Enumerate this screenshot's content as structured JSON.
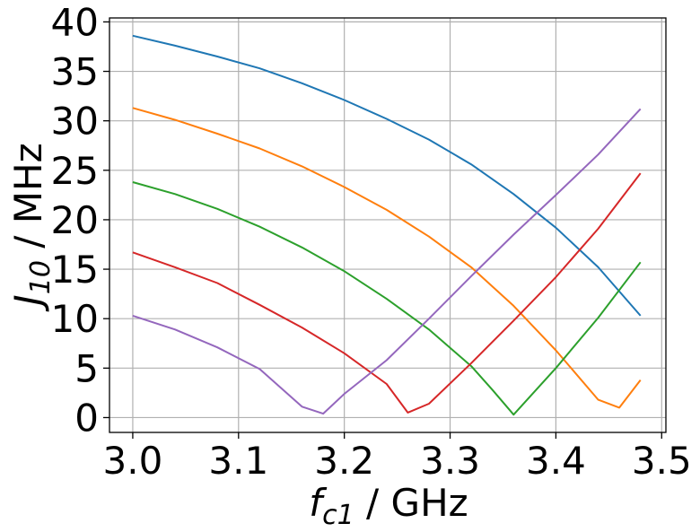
{
  "chart_data": {
    "type": "line",
    "xlabel": {
      "base": "f",
      "sub": "c1",
      "unit": " / GHz"
    },
    "ylabel": {
      "base": "J",
      "sub": "10",
      "unit": " / MHz"
    },
    "xlim": [
      2.978,
      3.504
    ],
    "ylim": [
      -1.5,
      40.4
    ],
    "grid": true,
    "xticks": [
      3.0,
      3.1,
      3.2,
      3.3,
      3.4,
      3.5
    ],
    "xtick_labels": [
      "3.0",
      "3.1",
      "3.2",
      "3.3",
      "3.4",
      "3.5"
    ],
    "yticks": [
      0,
      5,
      10,
      15,
      20,
      25,
      30,
      35,
      40
    ],
    "ytick_labels": [
      "0",
      "5",
      "10",
      "15",
      "20",
      "25",
      "30",
      "35",
      "40"
    ],
    "series": [
      {
        "color": "#1f77b4",
        "points": [
          [
            3.0,
            38.6
          ],
          [
            3.04,
            37.6
          ],
          [
            3.08,
            36.5
          ],
          [
            3.12,
            35.3
          ],
          [
            3.16,
            33.8
          ],
          [
            3.2,
            32.1
          ],
          [
            3.24,
            30.2
          ],
          [
            3.28,
            28.1
          ],
          [
            3.32,
            25.6
          ],
          [
            3.36,
            22.6
          ],
          [
            3.4,
            19.2
          ],
          [
            3.44,
            15.2
          ],
          [
            3.48,
            10.3
          ]
        ]
      },
      {
        "color": "#ff7f0e",
        "points": [
          [
            3.0,
            31.3
          ],
          [
            3.04,
            30.1
          ],
          [
            3.08,
            28.7
          ],
          [
            3.12,
            27.2
          ],
          [
            3.16,
            25.4
          ],
          [
            3.2,
            23.3
          ],
          [
            3.24,
            21.0
          ],
          [
            3.28,
            18.3
          ],
          [
            3.32,
            15.2
          ],
          [
            3.36,
            11.3
          ],
          [
            3.4,
            6.8
          ],
          [
            3.44,
            1.8
          ],
          [
            3.46,
            1.0
          ],
          [
            3.48,
            3.8
          ]
        ]
      },
      {
        "color": "#2ca02c",
        "points": [
          [
            3.0,
            23.8
          ],
          [
            3.04,
            22.6
          ],
          [
            3.08,
            21.1
          ],
          [
            3.12,
            19.3
          ],
          [
            3.16,
            17.2
          ],
          [
            3.2,
            14.8
          ],
          [
            3.24,
            12.0
          ],
          [
            3.28,
            8.9
          ],
          [
            3.32,
            5.2
          ],
          [
            3.34,
            2.8
          ],
          [
            3.36,
            0.3
          ],
          [
            3.4,
            5.0
          ],
          [
            3.44,
            10.1
          ],
          [
            3.48,
            15.7
          ]
        ]
      },
      {
        "color": "#d62728",
        "points": [
          [
            3.0,
            16.7
          ],
          [
            3.04,
            15.2
          ],
          [
            3.08,
            13.6
          ],
          [
            3.12,
            11.4
          ],
          [
            3.16,
            9.1
          ],
          [
            3.2,
            6.5
          ],
          [
            3.24,
            3.4
          ],
          [
            3.26,
            0.5
          ],
          [
            3.28,
            1.4
          ],
          [
            3.32,
            5.5
          ],
          [
            3.36,
            9.8
          ],
          [
            3.4,
            14.2
          ],
          [
            3.44,
            19.1
          ],
          [
            3.48,
            24.7
          ]
        ]
      },
      {
        "color": "#9467bd",
        "points": [
          [
            3.0,
            10.3
          ],
          [
            3.04,
            8.9
          ],
          [
            3.08,
            7.1
          ],
          [
            3.12,
            4.9
          ],
          [
            3.16,
            1.1
          ],
          [
            3.18,
            0.4
          ],
          [
            3.2,
            2.4
          ],
          [
            3.24,
            5.8
          ],
          [
            3.28,
            10.0
          ],
          [
            3.32,
            14.3
          ],
          [
            3.36,
            18.5
          ],
          [
            3.4,
            22.5
          ],
          [
            3.44,
            26.6
          ],
          [
            3.48,
            31.2
          ]
        ]
      }
    ]
  }
}
